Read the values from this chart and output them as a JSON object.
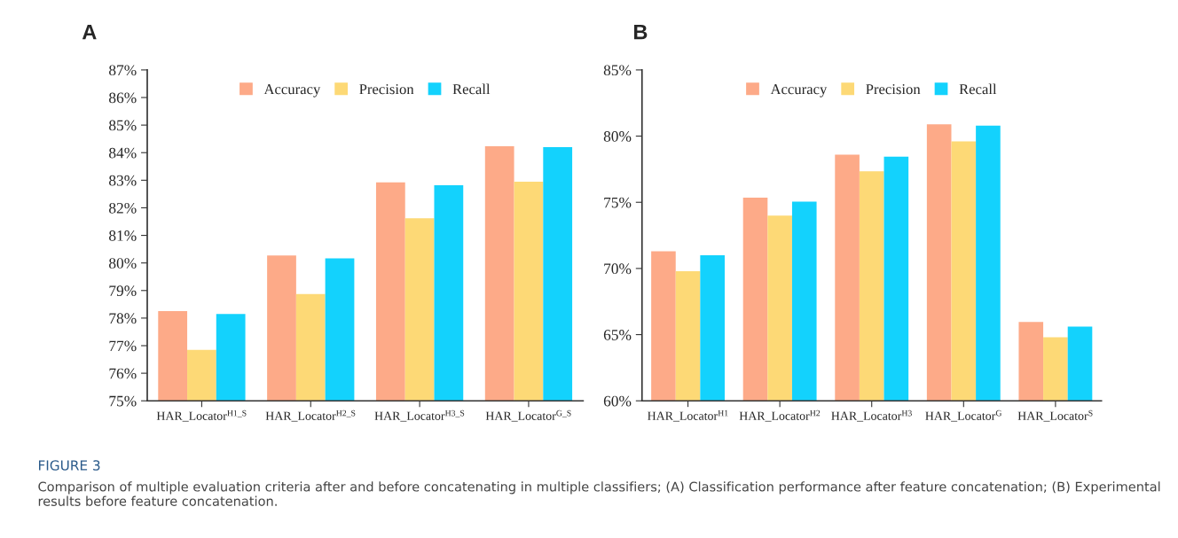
{
  "chart_data": [
    {
      "type": "bar",
      "title": "A",
      "categories": [
        "HAR_Locator$^{H1_S}$",
        "HAR_Locator$^{H2_S}$",
        "HAR_Locator$^{H3_S}$",
        "HAR_Locator$^{G_S}$"
      ],
      "series": [
        {
          "name": "Accuracy",
          "color": "#fdaa88",
          "values": [
            78.25,
            80.27,
            82.92,
            84.23
          ]
        },
        {
          "name": "Precision",
          "color": "#fdd976",
          "values": [
            76.85,
            78.87,
            81.62,
            82.95
          ]
        },
        {
          "name": "Recall",
          "color": "#13d2fd",
          "values": [
            78.15,
            80.17,
            82.82,
            84.2
          ]
        }
      ],
      "ylim": [
        75,
        87
      ],
      "yticks": [
        {
          "value": 75,
          "label": "75%"
        },
        {
          "value": 76,
          "label": "76%"
        },
        {
          "value": 77,
          "label": "77%"
        },
        {
          "value": 78,
          "label": "78%"
        },
        {
          "value": 79,
          "label": "79%"
        },
        {
          "value": 80,
          "label": "80%"
        },
        {
          "value": 81,
          "label": "81%"
        },
        {
          "value": 82,
          "label": "82%"
        },
        {
          "value": 83,
          "label": "83%"
        },
        {
          "value": 84,
          "label": "84%"
        },
        {
          "value": 85,
          "label": "85%"
        },
        {
          "value": 86,
          "label": "86%"
        },
        {
          "value": 87,
          "label": "87%"
        }
      ],
      "legend": "top",
      "grid": false,
      "annotations": [
        "FIGURE 3",
        "Comparison of multiple evaluation criteria after and before concatenating in multiple classifiers; (A) Classification performance after feature concatenation; (B) Experimental results before feature concatenation."
      ]
    },
    {
      "type": "bar",
      "title": "B",
      "categories": [
        "HAR_Locator$^{H1}$",
        "HAR_Locator$^{H2}$",
        "HAR_Locator$^{H3}$",
        "HAR_Locator$^{G}$",
        "HAR_Locator$^{S}$"
      ],
      "series": [
        {
          "name": "Accuracy",
          "color": "#fdaa88",
          "values": [
            71.3,
            75.35,
            78.6,
            80.9,
            65.95
          ]
        },
        {
          "name": "Precision",
          "color": "#fdd976",
          "values": [
            69.8,
            74.0,
            77.35,
            79.6,
            64.8
          ]
        },
        {
          "name": "Recall",
          "color": "#13d2fd",
          "values": [
            71.0,
            75.05,
            78.45,
            80.8,
            65.6
          ]
        }
      ],
      "ylim": [
        60,
        85
      ],
      "yticks": [
        {
          "value": 60,
          "label": "60%"
        },
        {
          "value": 65,
          "label": "65%"
        },
        {
          "value": 70,
          "label": "70%"
        },
        {
          "value": 75,
          "label": "75%"
        },
        {
          "value": 80,
          "label": "80%"
        },
        {
          "value": 85,
          "label": "85%"
        }
      ],
      "legend": "top",
      "grid": false
    }
  ]
}
